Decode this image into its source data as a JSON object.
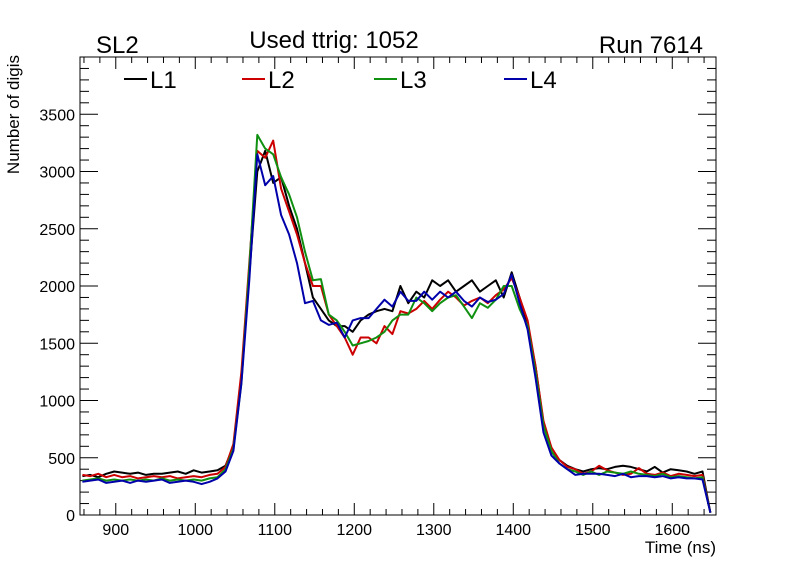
{
  "header": {
    "left_label": "SL2",
    "center_label": "Used ttrig: 1052",
    "right_label": "Run 7614"
  },
  "chart_data": {
    "type": "line",
    "title": "Used ttrig: 1052",
    "xlabel": "Time (ns)",
    "ylabel": "Number of digis",
    "xlim": [
      855,
      1655
    ],
    "ylim": [
      0,
      4000
    ],
    "x_ticks": [
      900,
      1000,
      1100,
      1200,
      1300,
      1400,
      1500,
      1600
    ],
    "y_ticks": [
      0,
      500,
      1000,
      1500,
      2000,
      2500,
      3000,
      3500
    ],
    "grid": false,
    "legend_position": "top-left",
    "colors": {
      "L1": "#000000",
      "L2": "#cc0000",
      "L3": "#109010",
      "L4": "#0000aa"
    },
    "x": [
      858,
      868,
      878,
      888,
      898,
      908,
      918,
      928,
      938,
      948,
      958,
      968,
      978,
      988,
      998,
      1008,
      1018,
      1028,
      1038,
      1048,
      1058,
      1068,
      1078,
      1088,
      1098,
      1108,
      1118,
      1128,
      1138,
      1148,
      1158,
      1168,
      1178,
      1188,
      1198,
      1208,
      1218,
      1228,
      1238,
      1248,
      1258,
      1268,
      1278,
      1288,
      1298,
      1308,
      1318,
      1328,
      1338,
      1348,
      1358,
      1368,
      1378,
      1388,
      1398,
      1408,
      1418,
      1428,
      1438,
      1448,
      1458,
      1468,
      1478,
      1488,
      1498,
      1508,
      1518,
      1528,
      1538,
      1548,
      1558,
      1568,
      1578,
      1588,
      1598,
      1608,
      1618,
      1628,
      1638,
      1648
    ],
    "series": [
      {
        "name": "L1",
        "values": [
          340,
          350,
          330,
          360,
          380,
          370,
          360,
          370,
          350,
          360,
          360,
          370,
          380,
          360,
          390,
          370,
          380,
          390,
          430,
          600,
          1200,
          2100,
          3000,
          3180,
          2900,
          2950,
          2700,
          2500,
          2200,
          1900,
          1800,
          1700,
          1650,
          1650,
          1600,
          1700,
          1750,
          1780,
          1800,
          1780,
          2000,
          1850,
          1950,
          1900,
          2050,
          2000,
          2050,
          1950,
          2000,
          2050,
          1950,
          2000,
          2050,
          1900,
          2120,
          1900,
          1650,
          1300,
          800,
          550,
          480,
          430,
          400,
          380,
          400,
          410,
          400,
          420,
          430,
          420,
          400,
          380,
          420,
          370,
          400,
          390,
          380,
          360,
          380,
          20
        ]
      },
      {
        "name": "L2",
        "values": [
          350,
          340,
          360,
          330,
          350,
          330,
          340,
          320,
          330,
          340,
          330,
          340,
          320,
          330,
          340,
          330,
          350,
          360,
          420,
          620,
          1250,
          2200,
          3180,
          3120,
          3270,
          2850,
          2650,
          2450,
          2200,
          2000,
          2000,
          1750,
          1650,
          1550,
          1400,
          1550,
          1550,
          1500,
          1650,
          1580,
          1780,
          1760,
          1800,
          1870,
          1800,
          1880,
          1950,
          1900,
          1830,
          1870,
          1900,
          1850,
          1920,
          1970,
          2070,
          1900,
          1700,
          1300,
          820,
          590,
          480,
          420,
          400,
          360,
          380,
          430,
          390,
          370,
          350,
          360,
          410,
          360,
          350,
          370,
          340,
          360,
          350,
          340,
          350,
          20
        ]
      },
      {
        "name": "L3",
        "values": [
          300,
          310,
          320,
          300,
          310,
          300,
          310,
          300,
          310,
          300,
          320,
          300,
          310,
          300,
          310,
          300,
          320,
          330,
          400,
          580,
          1150,
          2150,
          3320,
          3200,
          3150,
          2950,
          2800,
          2600,
          2300,
          2050,
          2060,
          1750,
          1700,
          1600,
          1480,
          1500,
          1520,
          1550,
          1600,
          1700,
          1750,
          1750,
          1900,
          1850,
          1780,
          1850,
          1900,
          1920,
          1820,
          1720,
          1850,
          1810,
          1880,
          2000,
          2000,
          1800,
          1650,
          1250,
          780,
          560,
          450,
          400,
          380,
          350,
          380,
          350,
          380,
          370,
          360,
          380,
          360,
          350,
          340,
          360,
          330,
          340,
          330,
          320,
          330,
          20
        ]
      },
      {
        "name": "L4",
        "values": [
          290,
          300,
          310,
          280,
          290,
          300,
          280,
          300,
          290,
          300,
          310,
          280,
          290,
          300,
          290,
          270,
          290,
          320,
          380,
          560,
          1150,
          2050,
          3150,
          2880,
          2960,
          2620,
          2450,
          2200,
          1850,
          1870,
          1700,
          1660,
          1680,
          1550,
          1700,
          1720,
          1720,
          1800,
          1880,
          1820,
          1950,
          1870,
          1870,
          1950,
          1880,
          1950,
          1900,
          1950,
          1870,
          1820,
          1900,
          1860,
          1880,
          1930,
          2100,
          1850,
          1620,
          1200,
          720,
          520,
          450,
          400,
          350,
          360,
          360,
          360,
          350,
          340,
          360,
          330,
          340,
          340,
          330,
          340,
          320,
          330,
          320,
          320,
          310,
          20
        ]
      }
    ]
  }
}
